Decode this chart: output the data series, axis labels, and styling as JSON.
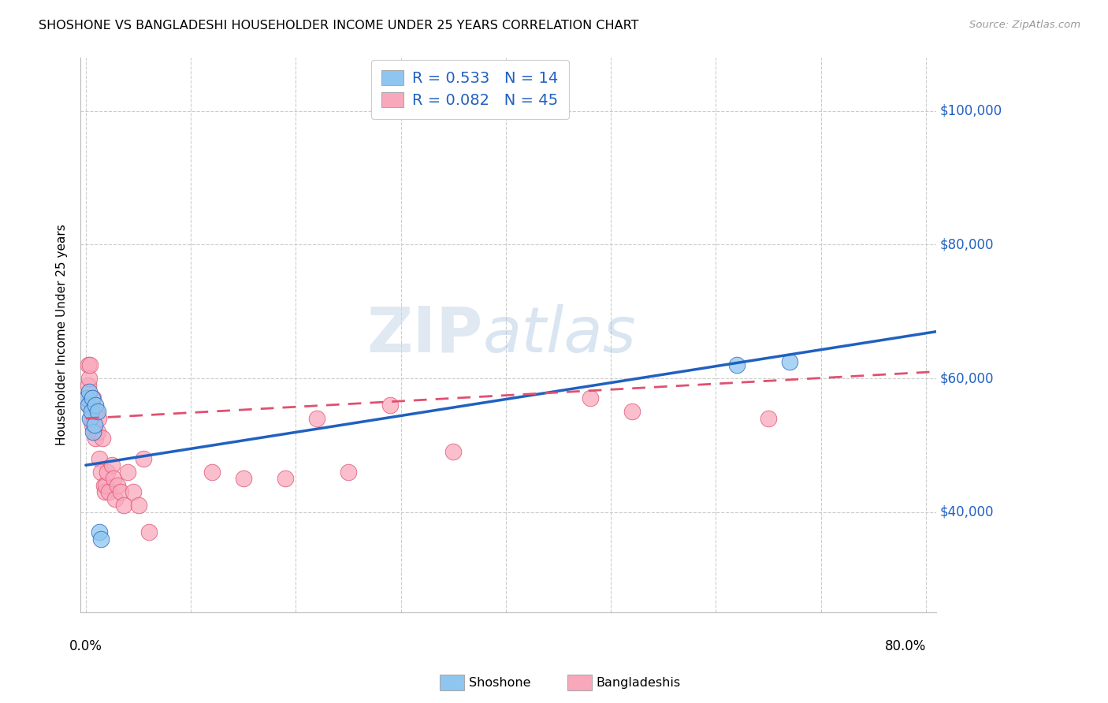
{
  "title": "SHOSHONE VS BANGLADESHI HOUSEHOLDER INCOME UNDER 25 YEARS CORRELATION CHART",
  "source": "Source: ZipAtlas.com",
  "ylabel": "Householder Income Under 25 years",
  "ytick_labels": [
    "$40,000",
    "$60,000",
    "$80,000",
    "$100,000"
  ],
  "ytick_values": [
    40000,
    60000,
    80000,
    100000
  ],
  "ylim": [
    25000,
    108000
  ],
  "xlim": [
    -0.005,
    0.81
  ],
  "legend_label1": "R = 0.533   N = 14",
  "legend_label2": "R = 0.082   N = 45",
  "shoshone_color": "#8EC6F0",
  "bangladeshi_color": "#F9A8BC",
  "line_color_shoshone": "#2060C0",
  "line_color_bangladeshi": "#E05070",
  "watermark_zip": "ZIP",
  "watermark_atlas": "atlas",
  "background_color": "#FFFFFF",
  "grid_color": "#CCCCCC",
  "shoshone_x": [
    0.001,
    0.002,
    0.003,
    0.004,
    0.005,
    0.006,
    0.007,
    0.008,
    0.009,
    0.011,
    0.013,
    0.014,
    0.62,
    0.67
  ],
  "shoshone_y": [
    57000,
    56000,
    58000,
    54000,
    55000,
    57000,
    52000,
    53000,
    56000,
    55000,
    37000,
    36000,
    62000,
    62500
  ],
  "bangladeshi_x": [
    0.001,
    0.002,
    0.002,
    0.003,
    0.003,
    0.004,
    0.005,
    0.005,
    0.006,
    0.006,
    0.007,
    0.008,
    0.009,
    0.01,
    0.011,
    0.012,
    0.013,
    0.014,
    0.016,
    0.017,
    0.018,
    0.019,
    0.02,
    0.022,
    0.025,
    0.026,
    0.028,
    0.03,
    0.033,
    0.036,
    0.04,
    0.045,
    0.05,
    0.055,
    0.06,
    0.12,
    0.15,
    0.19,
    0.22,
    0.25,
    0.29,
    0.35,
    0.48,
    0.52,
    0.65
  ],
  "bangladeshi_y": [
    57000,
    62000,
    59000,
    60000,
    56000,
    62000,
    57000,
    54000,
    56000,
    53000,
    57000,
    52000,
    51000,
    55000,
    52000,
    54000,
    48000,
    46000,
    51000,
    44000,
    43000,
    44000,
    46000,
    43000,
    47000,
    45000,
    42000,
    44000,
    43000,
    41000,
    46000,
    43000,
    41000,
    48000,
    37000,
    46000,
    45000,
    45000,
    54000,
    46000,
    56000,
    49000,
    57000,
    55000,
    54000
  ],
  "shoshone_line_x": [
    0.0,
    0.81
  ],
  "shoshone_line_y": [
    47000,
    67000
  ],
  "bangladeshi_line_x": [
    0.0,
    0.81
  ],
  "bangladeshi_line_y": [
    54000,
    61000
  ]
}
